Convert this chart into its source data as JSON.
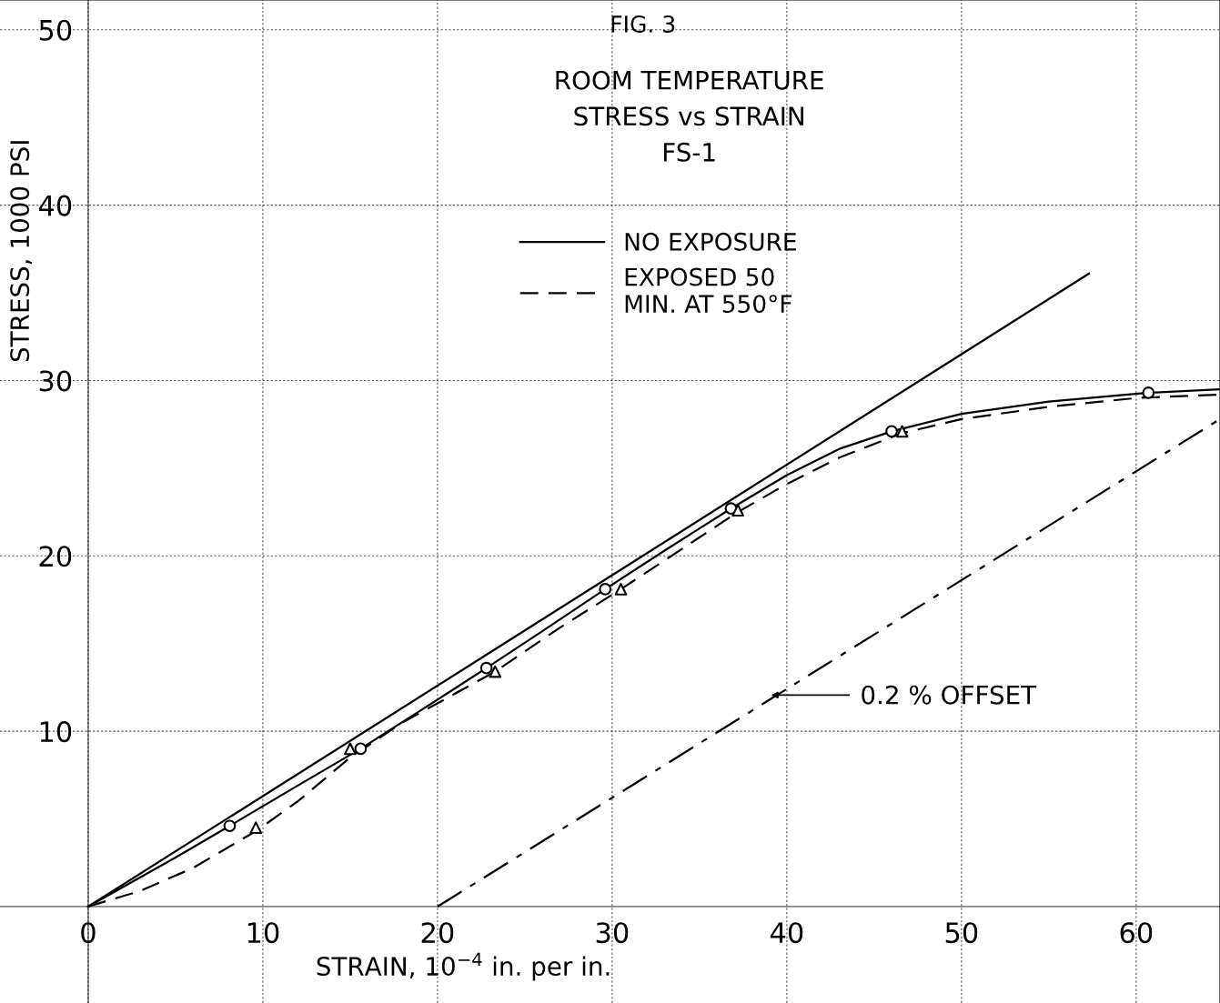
{
  "chart_data": {
    "type": "line",
    "title": "FIG. 3",
    "subtitle": "ROOM TEMPERATURE\nSTRESS vs STRAIN\nFS-1",
    "xlabel": "STRAIN, 10$^{−4}$ in. per in.",
    "ylabel": "STRESS, 1000 PSI",
    "xlim": [
      -5.05,
      64.8
    ],
    "ylim": [
      -5.5,
      51.7
    ],
    "xticks": [
      0,
      10,
      20,
      30,
      40,
      50,
      60
    ],
    "yticks": [
      10,
      20,
      30,
      40,
      50
    ],
    "grid": true,
    "legend": "top",
    "series": [
      {
        "name": "NO EXPOSURE",
        "color": "#000000",
        "line_style": "solid",
        "marker": "none",
        "x": [
          0,
          5,
          8.1,
          12,
          15.6,
          20,
          22.8,
          26,
          29.6,
          33,
          36.8,
          40,
          43,
          46,
          50,
          55,
          60.7,
          64.8
        ],
        "values": [
          0,
          2.8,
          4.6,
          6.9,
          9.0,
          11.8,
          13.6,
          15.7,
          18.1,
          20.3,
          22.7,
          24.6,
          26.1,
          27.1,
          28.1,
          28.8,
          29.3,
          29.5
        ]
      },
      {
        "name": "EXPOSED 50\nMIN. AT 550°F",
        "color": "#000000",
        "line_style": "dashed",
        "marker": "none",
        "x": [
          0,
          3,
          6,
          9.6,
          12,
          15,
          18,
          23.3,
          27,
          30.5,
          34,
          37.2,
          40,
          43,
          46.6,
          50,
          55,
          60,
          64.8
        ],
        "values": [
          0,
          0.9,
          2.2,
          4.3,
          6.0,
          8.5,
          10.5,
          13.4,
          15.9,
          18.1,
          20.4,
          22.5,
          24.1,
          25.6,
          27.0,
          27.8,
          28.5,
          29.0,
          29.2
        ]
      },
      {
        "type": "scatter",
        "color": "#000000",
        "marker": "circle",
        "x": [
          8.1,
          15.6,
          22.8,
          29.6,
          36.8,
          46.0,
          60.7
        ],
        "values": [
          4.6,
          9.0,
          13.6,
          18.1,
          22.7,
          27.1,
          29.3
        ]
      },
      {
        "type": "scatter",
        "color": "#000000",
        "marker": "triangle",
        "x": [
          9.6,
          15.0,
          23.3,
          30.5,
          37.2,
          46.6
        ],
        "values": [
          4.5,
          9.0,
          13.4,
          18.1,
          22.6,
          27.1
        ]
      },
      {
        "color": "#000000",
        "line_style": "solid",
        "marker": "none",
        "x": [
          0,
          57.3
        ],
        "values": [
          0,
          36.1
        ]
      },
      {
        "color": "#000000",
        "line_style": "dashdot",
        "marker": "none",
        "x": [
          20,
          64.8
        ],
        "values": [
          0,
          27.8
        ]
      }
    ],
    "annotations": [
      "0.2 % OFFSET"
    ]
  }
}
